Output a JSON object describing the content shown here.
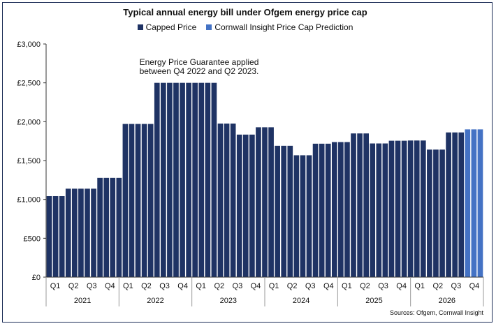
{
  "chart_data": {
    "type": "bar",
    "title": "Typical annual energy bill under Ofgem energy price cap",
    "source": "Sources: Ofgem, Cornwall Insight",
    "annotation": [
      "Energy Price Guarantee applied",
      "between Q4 2022 and Q2 2023."
    ],
    "ylim": [
      0,
      3000
    ],
    "yticks": [
      "£0",
      "£500",
      "£1,000",
      "£1,500",
      "£2,000",
      "£2,500",
      "£3,000"
    ],
    "grid": false,
    "legend_position": "top",
    "quarters": [
      "Q1",
      "Q2",
      "Q3",
      "Q4",
      "Q1",
      "Q2",
      "Q3",
      "Q4",
      "Q1",
      "Q2",
      "Q3",
      "Q4",
      "Q1",
      "Q2",
      "Q3",
      "Q4",
      "Q1",
      "Q2",
      "Q3",
      "Q4",
      "Q1",
      "Q2",
      "Q3",
      "Q4"
    ],
    "years": [
      "2021",
      "2022",
      "2023",
      "2024",
      "2025",
      "2026"
    ],
    "series": [
      {
        "name": "Capped Price",
        "color": "#1f3364",
        "values": [
          1042,
          1042,
          1042,
          1138,
          1138,
          1138,
          1138,
          1138,
          1277,
          1277,
          1277,
          1277,
          1971,
          1971,
          1971,
          1971,
          1971,
          2500,
          2500,
          2500,
          2500,
          2500,
          2500,
          2500,
          2500,
          2500,
          2500,
          1976,
          1976,
          1976,
          1834,
          1834,
          1834,
          1928,
          1928,
          1928,
          1690,
          1690,
          1690,
          1568,
          1568,
          1568,
          1717,
          1717,
          1717,
          1738,
          1738,
          1738,
          1849,
          1849,
          1849,
          1720,
          1720,
          1720,
          1755,
          1755,
          1755,
          1758,
          1758,
          1758,
          1641,
          1641,
          1641,
          1862,
          1862,
          1862
        ]
      },
      {
        "name": "Cornwall Insight Price Cap Prediction",
        "color": "#4472c4",
        "values": [
          1901,
          1901,
          1901
        ]
      }
    ]
  }
}
